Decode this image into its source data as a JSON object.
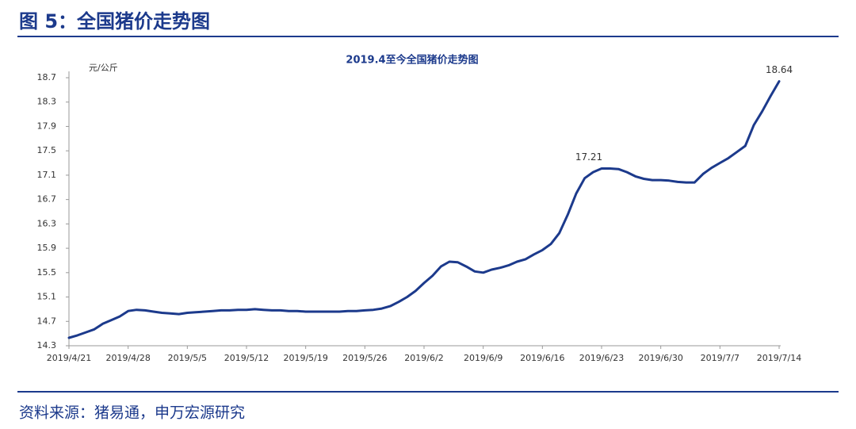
{
  "header": {
    "title": "图 5：全国猪价走势图"
  },
  "chart_data": {
    "type": "line",
    "title": "2019.4至今全国猪价走势图",
    "y_unit": "元/公斤",
    "color": "#1c3a8c",
    "categories": [
      "2019/4/21",
      null,
      null,
      null,
      null,
      null,
      null,
      "2019/4/28",
      null,
      null,
      null,
      null,
      null,
      null,
      "2019/5/5",
      null,
      null,
      null,
      null,
      null,
      null,
      "2019/5/12",
      null,
      null,
      null,
      null,
      null,
      null,
      "2019/5/19",
      null,
      null,
      null,
      null,
      null,
      null,
      "2019/5/26",
      null,
      null,
      null,
      null,
      null,
      null,
      "2019/6/2",
      null,
      null,
      null,
      null,
      null,
      null,
      "2019/6/9",
      null,
      null,
      null,
      null,
      null,
      null,
      "2019/6/16",
      null,
      null,
      null,
      null,
      null,
      null,
      "2019/6/23",
      null,
      null,
      null,
      null,
      null,
      null,
      "2019/6/30",
      null,
      null,
      null,
      null,
      null,
      null,
      "2019/7/7",
      null,
      null,
      null,
      null,
      null,
      null,
      "2019/7/14"
    ],
    "values": [
      14.43,
      14.47,
      14.52,
      14.57,
      14.66,
      14.72,
      14.78,
      14.87,
      14.89,
      14.88,
      14.86,
      14.84,
      14.83,
      14.82,
      14.84,
      14.85,
      14.86,
      14.87,
      14.88,
      14.88,
      14.89,
      14.89,
      14.9,
      14.89,
      14.88,
      14.88,
      14.87,
      14.87,
      14.86,
      14.86,
      14.86,
      14.86,
      14.86,
      14.87,
      14.87,
      14.88,
      14.89,
      14.91,
      14.95,
      15.02,
      15.1,
      15.2,
      15.33,
      15.45,
      15.6,
      15.68,
      15.67,
      15.6,
      15.52,
      15.5,
      15.55,
      15.58,
      15.62,
      15.68,
      15.72,
      15.8,
      15.87,
      15.97,
      16.15,
      16.45,
      16.8,
      17.05,
      17.15,
      17.21,
      17.21,
      17.2,
      17.15,
      17.08,
      17.04,
      17.02,
      17.02,
      17.01,
      16.99,
      16.98,
      16.98,
      17.12,
      17.22,
      17.3,
      17.38,
      17.48,
      17.58,
      17.92,
      18.15,
      18.4,
      18.64
    ],
    "value_labels": [
      null,
      null,
      null,
      null,
      null,
      null,
      null,
      null,
      null,
      null,
      null,
      null,
      null,
      null,
      null,
      null,
      null,
      null,
      null,
      null,
      null,
      null,
      null,
      null,
      null,
      null,
      null,
      null,
      null,
      null,
      null,
      null,
      null,
      null,
      null,
      null,
      null,
      null,
      null,
      null,
      null,
      null,
      null,
      null,
      null,
      null,
      null,
      null,
      null,
      null,
      null,
      null,
      null,
      null,
      null,
      null,
      null,
      null,
      null,
      null,
      null,
      null,
      null,
      "17.21",
      null,
      null,
      null,
      null,
      null,
      null,
      null,
      null,
      null,
      null,
      null,
      null,
      null,
      null,
      null,
      null,
      null,
      null,
      null,
      null,
      "18.64"
    ],
    "ylim": [
      14.3,
      18.7
    ],
    "yticks": [
      14.3,
      14.7,
      15.1,
      15.5,
      15.9,
      16.3,
      16.7,
      17.1,
      17.5,
      17.9,
      18.3,
      18.7
    ]
  },
  "footer": {
    "source": "资料来源：猪易通，申万宏源研究"
  }
}
